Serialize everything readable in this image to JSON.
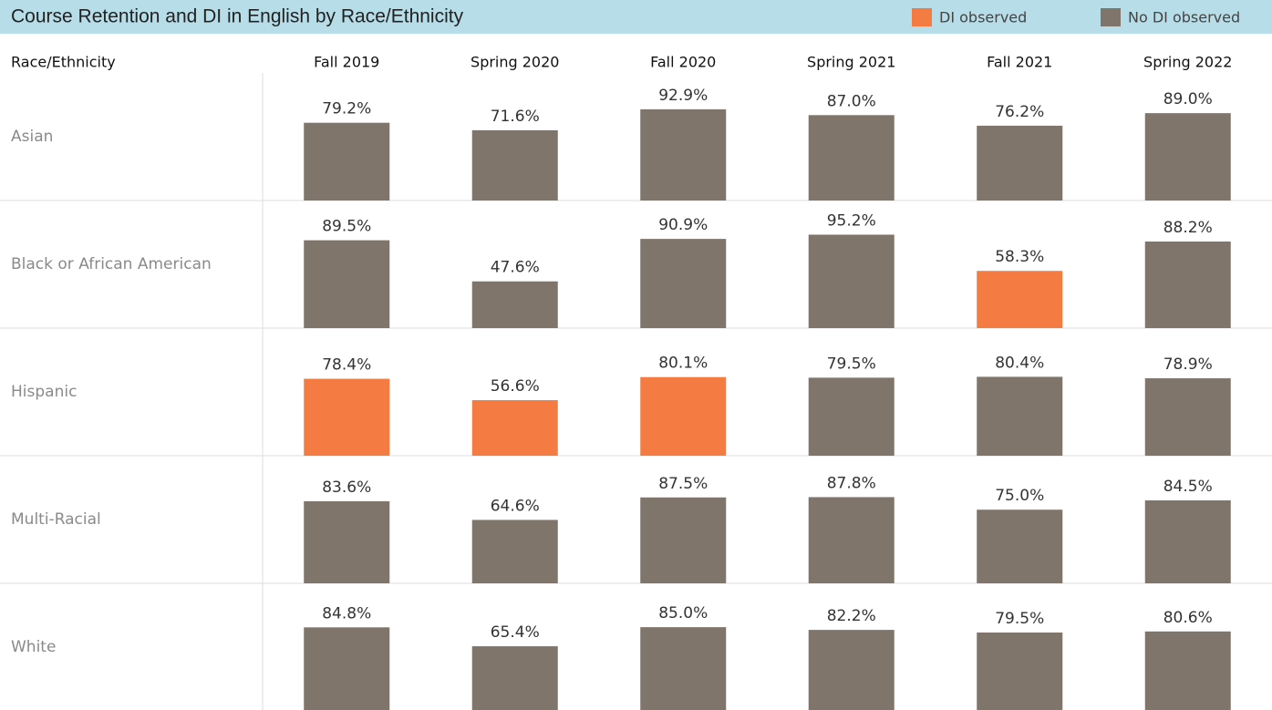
{
  "chart_data": {
    "type": "bar",
    "title": "Course Retention and DI in English by Race/Ethnicity",
    "row_label": "Race/Ethnicity",
    "categories": [
      "Fall 2019",
      "Spring 2020",
      "Fall 2020",
      "Spring 2021",
      "Fall 2021",
      "Spring 2022"
    ],
    "legend": [
      {
        "name": "DI observed",
        "color": "#f47b42"
      },
      {
        "name": "No DI observed",
        "color": "#7f756b"
      }
    ],
    "ylim": [
      0,
      130
    ],
    "groups": [
      {
        "name": "Asian",
        "values": [
          79.2,
          71.6,
          92.9,
          87.0,
          76.2,
          89.0
        ],
        "value_labels": [
          "79.2%",
          "71.6%",
          "92.9%",
          "87.0%",
          "76.2%",
          "89.0%"
        ],
        "di_observed": [
          false,
          false,
          false,
          false,
          false,
          false
        ]
      },
      {
        "name": "Black or African American",
        "values": [
          89.5,
          47.6,
          90.9,
          95.2,
          58.3,
          88.2
        ],
        "value_labels": [
          "89.5%",
          "47.6%",
          "90.9%",
          "95.2%",
          "58.3%",
          "88.2%"
        ],
        "di_observed": [
          false,
          false,
          false,
          false,
          true,
          false
        ]
      },
      {
        "name": "Hispanic",
        "values": [
          78.4,
          56.6,
          80.1,
          79.5,
          80.4,
          78.9
        ],
        "value_labels": [
          "78.4%",
          "56.6%",
          "80.1%",
          "79.5%",
          "80.4%",
          "78.9%"
        ],
        "di_observed": [
          true,
          true,
          true,
          false,
          false,
          false
        ]
      },
      {
        "name": "Multi-Racial",
        "values": [
          83.6,
          64.6,
          87.5,
          87.8,
          75.0,
          84.5
        ],
        "value_labels": [
          "83.6%",
          "64.6%",
          "87.5%",
          "87.8%",
          "75.0%",
          "84.5%"
        ],
        "di_observed": [
          false,
          false,
          false,
          false,
          false,
          false
        ]
      },
      {
        "name": "White",
        "values": [
          84.8,
          65.4,
          85.0,
          82.2,
          79.5,
          80.6
        ],
        "value_labels": [
          "84.8%",
          "65.4%",
          "85.0%",
          "82.2%",
          "79.5%",
          "80.6%"
        ],
        "di_observed": [
          false,
          false,
          false,
          false,
          false,
          false
        ]
      }
    ]
  }
}
